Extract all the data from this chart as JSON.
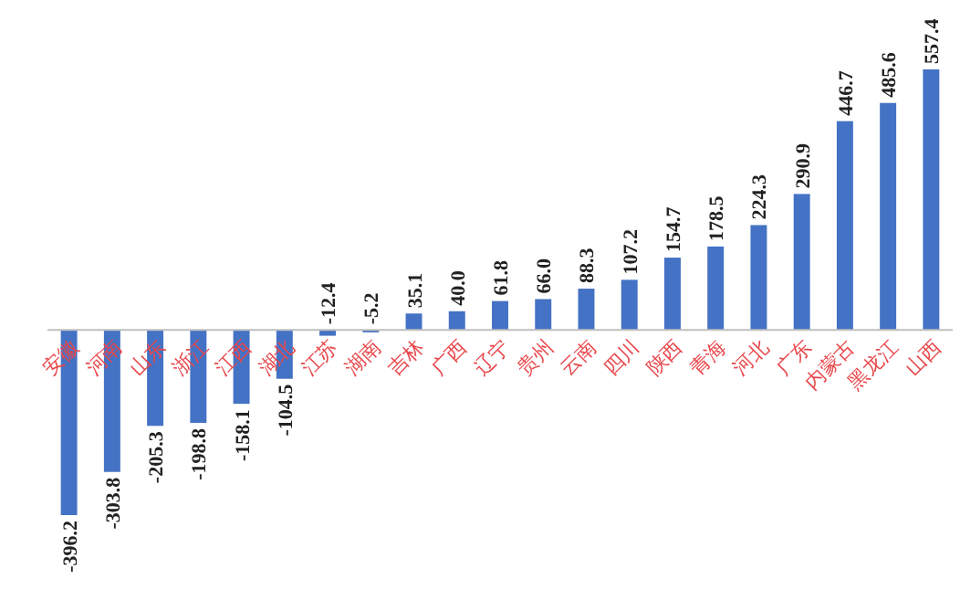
{
  "chart_data": {
    "type": "bar",
    "categories": [
      "安徽",
      "河南",
      "山东",
      "浙江",
      "江西",
      "湖北",
      "江苏",
      "湖南",
      "吉林",
      "广西",
      "辽宁",
      "贵州",
      "云南",
      "四川",
      "陕西",
      "青海",
      "河北",
      "广东",
      "内蒙古",
      "黑龙江",
      "山西"
    ],
    "values": [
      -396.2,
      -303.8,
      -205.3,
      -198.8,
      -158.1,
      -104.5,
      -12.4,
      -5.2,
      35.1,
      40.0,
      61.8,
      66.0,
      88.3,
      107.2,
      154.7,
      178.5,
      224.3,
      290.9,
      446.7,
      485.6,
      557.4
    ],
    "color": "#4472c4",
    "data_labels": true,
    "value_labels": [
      "-396.2",
      "-303.8",
      "-205.3",
      "-198.8",
      "-158.1",
      "-104.5",
      "-12.4",
      "-5.2",
      "35.1",
      "40.0",
      "61.8",
      "66.0",
      "88.3",
      "107.2",
      "154.7",
      "178.5",
      "224.3",
      "290.9",
      "446.7",
      "485.6",
      "557.4"
    ]
  }
}
